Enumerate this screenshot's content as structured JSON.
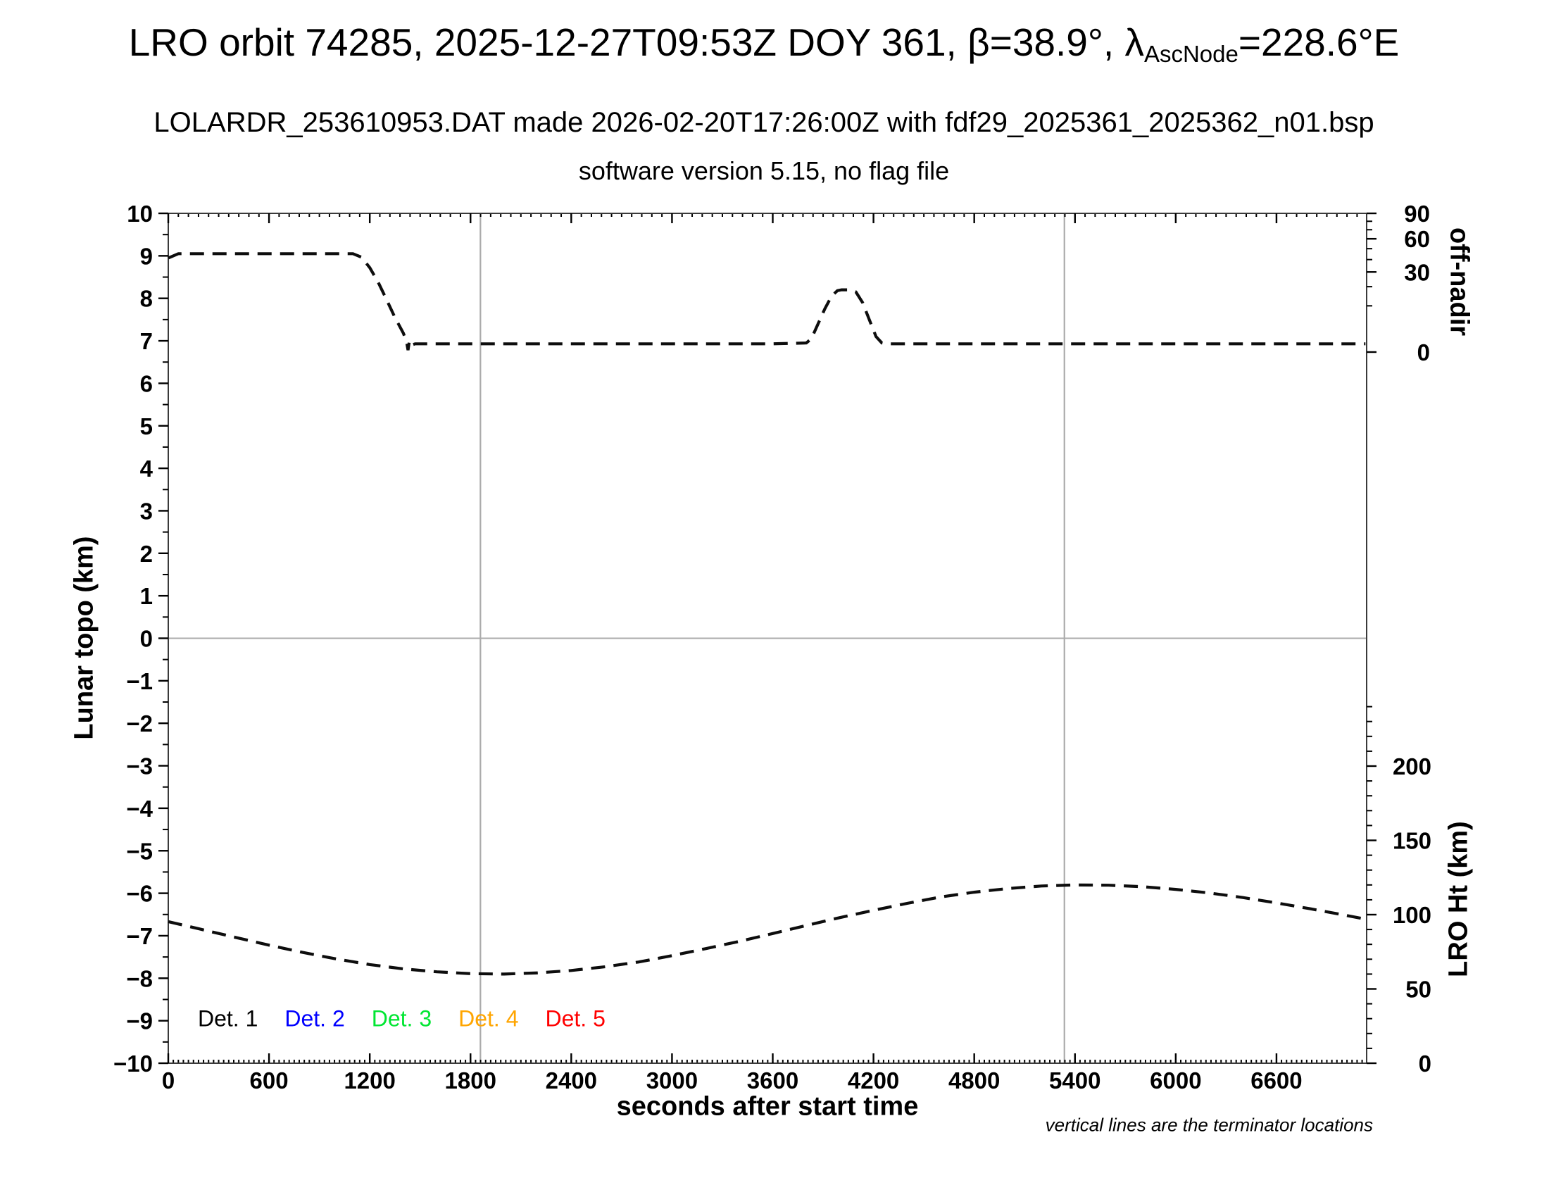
{
  "header": {
    "title_main": "LRO orbit 74285, 2025-12-27T09:53Z DOY 361, β=38.9°, ",
    "title_lambda": "λ",
    "title_lambda_sub": "AscNode",
    "title_tail": "=228.6°E",
    "subtitle1": "LOLARDR_253610953.DAT made 2026-02-20T17:26:00Z with fdf29_2025361_2025362_n01.bsp",
    "subtitle2": "software version 5.15, no flag file"
  },
  "axes": {
    "x": {
      "label": "seconds after start time",
      "tick_values": [
        0,
        600,
        1200,
        1800,
        2400,
        3000,
        3600,
        4200,
        4800,
        5400,
        6000,
        6600
      ],
      "tick_labels": [
        "0",
        "600",
        "1200",
        "1800",
        "2400",
        "3000",
        "3600",
        "4200",
        "4800",
        "5400",
        "6000",
        "6600"
      ],
      "range_s": [
        0,
        7137
      ],
      "bottom_dot_step_s": 30,
      "top_dot_step_s": 60
    },
    "y_left": {
      "label": "Lunar topo (km)",
      "min": -10,
      "max": 10,
      "major_step": 1,
      "minor_step": 0.5,
      "tick_values": [
        10,
        9,
        8,
        7,
        6,
        5,
        4,
        3,
        2,
        1,
        0,
        -1,
        -2,
        -3,
        -4,
        -5,
        -6,
        -7,
        -8,
        -9,
        -10
      ],
      "tick_labels": [
        "10",
        "9",
        "8",
        "7",
        "6",
        "5",
        "4",
        "3",
        "2",
        "1",
        "0",
        "−1",
        "−2",
        "−3",
        "−4",
        "−5",
        "−6",
        "−7",
        "−8",
        "−9",
        "−10"
      ]
    },
    "y_right_top": {
      "label": "off-nadir",
      "major_ticks": [
        90,
        60,
        30,
        0
      ],
      "major_labels": [
        "90",
        "60",
        "30",
        "0"
      ],
      "minor_ticks": [
        80,
        70,
        50,
        40,
        20,
        10
      ],
      "scale": "sqrt"
    },
    "y_right_bottom": {
      "label": "LRO Ht (km)",
      "major_ticks": [
        200,
        150,
        100,
        50,
        0
      ],
      "major_labels": [
        "200",
        "150",
        "100",
        "50",
        "0"
      ],
      "minor_step_km": 10,
      "minor_max_km": 240
    }
  },
  "legend": {
    "items": [
      {
        "label": "Det. 1",
        "color": "#000000"
      },
      {
        "label": "Det. 2",
        "color": "#0000ff"
      },
      {
        "label": "Det. 3",
        "color": "#00e632"
      },
      {
        "label": "Det. 4",
        "color": "#ffa500"
      },
      {
        "label": "Det. 5",
        "color": "#ff0000"
      }
    ]
  },
  "note": "vertical lines are the terminator locations",
  "colors": {
    "curve": "#0d0d0d",
    "frame": "#3a3a3a",
    "reference_lines": "#ababab"
  },
  "chart_data": {
    "type": "line",
    "title": "LRO orbit 74285, 2025-12-27T09:53Z DOY 361, β=38.9°, λAscNode=228.6°E",
    "xlabel": "seconds after start time",
    "xlim_s": [
      0,
      7137
    ],
    "ylabel_left": "Lunar topo (km)",
    "ylim_left": [
      -10,
      10
    ],
    "ylabel_right_top": "off-nadir",
    "right_top_ticks_deg": [
      90,
      60,
      30,
      0
    ],
    "ylabel_right_bottom": "LRO Ht (km)",
    "right_bottom_ticks_km": [
      200,
      150,
      100,
      50,
      0
    ],
    "grid": false,
    "legend_position": "bottom-left inside",
    "terminator_lines_s": [
      1859,
      5337
    ],
    "series": [
      {
        "name": "spacecraft off-nadir angle (dashed, plotted against left-axis units)",
        "style": "dashed",
        "color": "#0d0d0d",
        "axis": "left",
        "x_s": [
          0,
          60,
          300,
          600,
          900,
          1100,
          1150,
          1200,
          1250,
          1300,
          1350,
          1400,
          1412,
          1421,
          1428,
          1436,
          1448,
          1470,
          1600,
          2000,
          2400,
          2800,
          3200,
          3600,
          3800,
          3830,
          3870,
          3910,
          3950,
          3985,
          4010,
          4060,
          4095,
          4135,
          4175,
          4215,
          4250,
          4270,
          4600,
          5000,
          5400,
          5800,
          6200,
          6600,
          7000,
          7130
        ],
        "y": [
          8.95,
          9.05,
          9.05,
          9.05,
          9.05,
          9.05,
          8.97,
          8.72,
          8.38,
          7.97,
          7.55,
          7.18,
          7.05,
          6.93,
          6.78,
          7.0,
          6.9,
          6.93,
          6.93,
          6.93,
          6.93,
          6.93,
          6.93,
          6.93,
          6.95,
          7.05,
          7.4,
          7.75,
          8.05,
          8.18,
          8.2,
          8.2,
          8.15,
          7.9,
          7.5,
          7.1,
          6.95,
          6.93,
          6.93,
          6.93,
          6.93,
          6.93,
          6.93,
          6.93,
          6.93,
          6.93
        ]
      },
      {
        "name": "LRO height above surface (dashed)",
        "style": "dashed",
        "color": "#0d0d0d",
        "axis": "right_km",
        "x_s": [
          0,
          200,
          400,
          600,
          800,
          1000,
          1200,
          1400,
          1600,
          1800,
          2000,
          2200,
          2400,
          2600,
          2800,
          3000,
          3200,
          3400,
          3600,
          3800,
          4000,
          4200,
          4400,
          4600,
          4800,
          5000,
          5200,
          5400,
          5600,
          5800,
          6000,
          6200,
          6400,
          6600,
          6800,
          7000,
          7130
        ],
        "y_km": [
          95.3,
          90.0,
          84.7,
          79.5,
          74.6,
          70.2,
          66.4,
          63.5,
          61.5,
          60.3,
          60.0,
          60.8,
          62.4,
          64.9,
          68.1,
          72.4,
          77.1,
          82.0,
          87.3,
          92.7,
          98.0,
          102.9,
          107.6,
          111.9,
          115.1,
          117.6,
          119.3,
          120.0,
          119.8,
          118.8,
          117.0,
          114.6,
          111.5,
          107.9,
          104.0,
          99.8,
          97.0
        ]
      }
    ]
  }
}
